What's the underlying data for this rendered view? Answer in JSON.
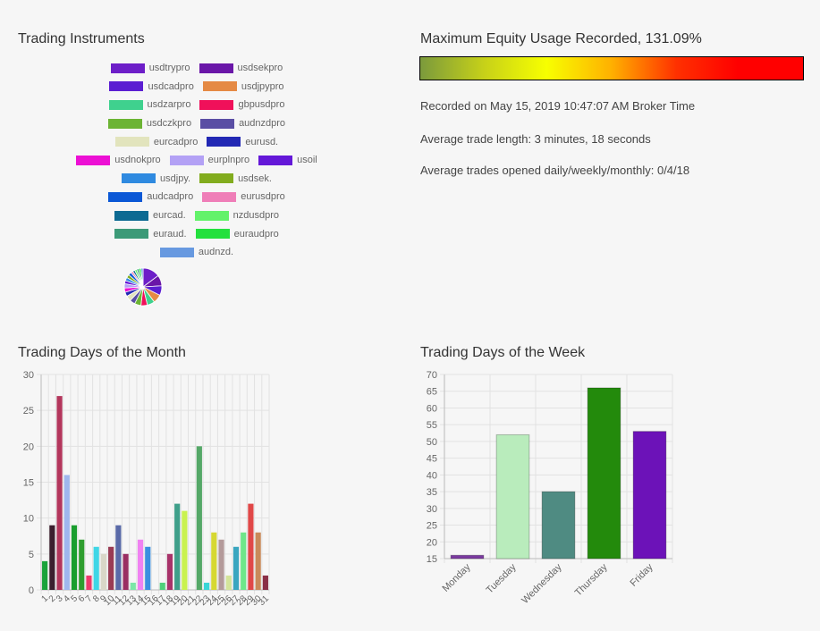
{
  "instruments": {
    "title": "Trading Instruments",
    "legend": [
      {
        "label": "usdtrypro",
        "color": "#6d1ec8"
      },
      {
        "label": "usdsekpro",
        "color": "#6a16a8"
      },
      {
        "label": "usdcadpro",
        "color": "#5b1ed2"
      },
      {
        "label": "usdjpypro",
        "color": "#e58a44"
      },
      {
        "label": "usdzarpro",
        "color": "#3fd18e"
      },
      {
        "label": "gbpusdpro",
        "color": "#f0105a"
      },
      {
        "label": "usdczkpro",
        "color": "#6cb434"
      },
      {
        "label": "audnzdpro",
        "color": "#5a4ea4"
      },
      {
        "label": "eurcadpro",
        "color": "#e2e4bd"
      },
      {
        "label": "eurusd.",
        "color": "#2228b4"
      },
      {
        "label": "usdnokpro",
        "color": "#ec10d4"
      },
      {
        "label": "eurplnpro",
        "color": "#b3a1f5"
      },
      {
        "label": "usoil",
        "color": "#6418d8"
      },
      {
        "label": "usdjpy.",
        "color": "#2f8ae0"
      },
      {
        "label": "usdsek.",
        "color": "#82ac1e"
      },
      {
        "label": "audcadpro",
        "color": "#0b58d6"
      },
      {
        "label": "eurusdpro",
        "color": "#ef7eb8"
      },
      {
        "label": "eurcad.",
        "color": "#0d6a92"
      },
      {
        "label": "nzdusdpro",
        "color": "#63f26a"
      },
      {
        "label": "euraud.",
        "color": "#3c9a78"
      },
      {
        "label": "euraudpro",
        "color": "#24e03e"
      },
      {
        "label": "audnzd.",
        "color": "#6799e0"
      }
    ],
    "legend_rows": [
      [
        0,
        1
      ],
      [
        2,
        3
      ],
      [
        4,
        5
      ],
      [
        6,
        7
      ],
      [
        8,
        9
      ],
      [
        10,
        11,
        12
      ],
      [
        13,
        14
      ],
      [
        15,
        16
      ],
      [
        17,
        18
      ],
      [
        19,
        20
      ],
      [
        21
      ]
    ],
    "pie_values": [
      16,
      10,
      9,
      8,
      7,
      6,
      6,
      5,
      5,
      4,
      4,
      4,
      3,
      3,
      3,
      3,
      2,
      2,
      2,
      2,
      2,
      2
    ]
  },
  "equity": {
    "title": "Maximum Equity Usage Recorded, 131.09%",
    "gradient": [
      "#7b9a3c",
      "#c8d218",
      "#f7ff00",
      "#ffb000",
      "#ff3000",
      "#ff0000",
      "#ff0000"
    ],
    "recorded": "Recorded on May 15, 2019 10:47:07 AM Broker Time",
    "avg_length": "Average trade length: 3 minutes, 18 seconds",
    "avg_opened": "Average trades opened daily/weekly/monthly: 0/4/18"
  },
  "month_title": "Trading Days of the Month",
  "week_title": "Trading Days of the Week",
  "chart_data": [
    {
      "type": "bar",
      "title": "Trading Days of the Month",
      "categories": [
        "1",
        "2",
        "3",
        "4",
        "5",
        "6",
        "7",
        "8",
        "9",
        "10",
        "11",
        "12",
        "13",
        "14",
        "15",
        "16",
        "17",
        "18",
        "19",
        "20",
        "21",
        "22",
        "23",
        "24",
        "25",
        "26",
        "27",
        "28",
        "29",
        "30",
        "31"
      ],
      "values": [
        4,
        9,
        27,
        16,
        9,
        7,
        2,
        6,
        5,
        6,
        9,
        5,
        1,
        7,
        6,
        0,
        1,
        5,
        12,
        11,
        0,
        20,
        1,
        8,
        7,
        2,
        6,
        8,
        12,
        8,
        2
      ],
      "colors": [
        "#19a33a",
        "#3c1f2e",
        "#b3365c",
        "#9fb7ee",
        "#1a9e2e",
        "#2f9e2f",
        "#ee3b6c",
        "#3fd6e6",
        "#d9d7c8",
        "#9a3b54",
        "#5a6aa8",
        "#9a2e62",
        "#7de8a8",
        "#f082f2",
        "#3b8fe0",
        "#888888",
        "#4fd07a",
        "#a8336a",
        "#3f9f8a",
        "#c9f24f",
        "#8fd0c8",
        "#55a868",
        "#3ad6d6",
        "#d6d832",
        "#b49a9a",
        "#d4e49a",
        "#3aa6c0",
        "#6fe68a",
        "#e04848",
        "#c98a5a",
        "#8a2e46"
      ],
      "ylim": [
        0,
        30
      ],
      "yticks": [
        0,
        5,
        10,
        15,
        20,
        25,
        30
      ]
    },
    {
      "type": "bar",
      "title": "Trading Days of the Week",
      "categories": [
        "Monday",
        "Tuesday",
        "Wednesday",
        "Thursday",
        "Friday"
      ],
      "values": [
        16,
        52,
        35,
        66,
        53
      ],
      "colors": [
        "#7b3aa0",
        "#b9ecbc",
        "#4f8b82",
        "#238a0c",
        "#6c12b8"
      ],
      "ylim": [
        15,
        70
      ],
      "yticks": [
        15,
        20,
        25,
        30,
        35,
        40,
        45,
        50,
        55,
        60,
        65,
        70
      ]
    }
  ]
}
